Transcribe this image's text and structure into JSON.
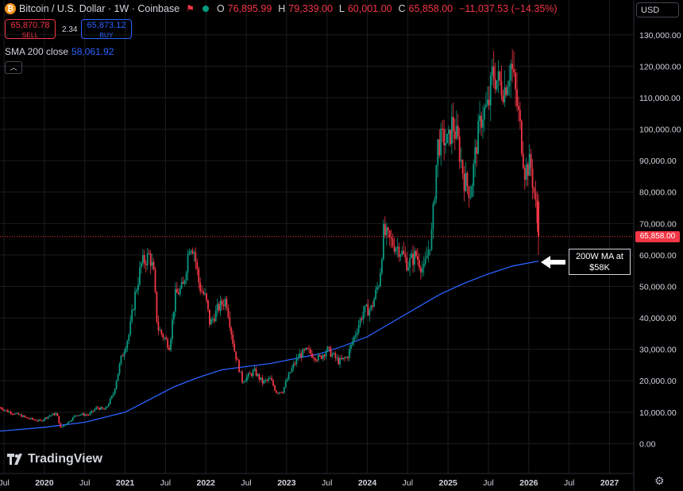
{
  "header": {
    "title": "Bitcoin / U.S. Dollar · 1W · Coinbase",
    "open_label": "O",
    "open": "76,895.99",
    "high_label": "H",
    "high": "79,339.00",
    "low_label": "L",
    "low": "60,001.00",
    "close_label": "C",
    "close": "65,858.00",
    "change": "−11,037.53 (−14.35%)"
  },
  "trade": {
    "sell_price": "65,870.78",
    "sell_label": "SELL",
    "spread": "2.34",
    "buy_price": "65,873.12",
    "buy_label": "BUY"
  },
  "indicator": {
    "label": "SMA 200 close",
    "value": "58,061.92"
  },
  "currency": "USD",
  "brand": "TradingView",
  "price_tag": "65,858.00",
  "annotation": {
    "line1": "200W MA at",
    "line2": "$58K"
  },
  "colors": {
    "up": "#089981",
    "down": "#f23645",
    "sma": "#2962ff",
    "background": "#000000"
  },
  "icons": [
    "bitcoin-icon",
    "flag-icon",
    "market-open-dot-icon",
    "collapse-icon",
    "tradingview-logo-icon",
    "settings-gear-icon",
    "arrow-left-icon"
  ],
  "chart_data": {
    "type": "candlestick",
    "title": "Bitcoin / U.S. Dollar · 1W · Coinbase",
    "y_tick_labels": [
      "130,000.00",
      "120,000.00",
      "110,000.00",
      "100,000.00",
      "90,000.00",
      "80,000.00",
      "70,000.00",
      "60,000.00",
      "50,000.00",
      "40,000.00",
      "30,000.00",
      "20,000.00",
      "10,000.00",
      "0.00"
    ],
    "y_ticks": [
      130000,
      120000,
      110000,
      100000,
      90000,
      80000,
      70000,
      60000,
      50000,
      40000,
      30000,
      20000,
      10000,
      0
    ],
    "ylim": [
      -9500,
      134000
    ],
    "x_tick_labels": [
      "Jul",
      "2020",
      "Jul",
      "2021",
      "Jul",
      "2022",
      "Jul",
      "2023",
      "Jul",
      "2024",
      "Jul",
      "2025",
      "Jul",
      "2026",
      "Jul",
      "2027"
    ],
    "x_ticks": [
      2019.5,
      2020.0,
      2020.5,
      2021.0,
      2021.5,
      2022.0,
      2022.5,
      2023.0,
      2023.5,
      2024.0,
      2024.5,
      2025.0,
      2025.5,
      2026.0,
      2026.5,
      2027.0
    ],
    "xlim": [
      2019.45,
      2027.3
    ],
    "grid": true,
    "last_price": 65858,
    "price_series": [
      [
        2019.45,
        11500
      ],
      [
        2019.55,
        10200
      ],
      [
        2019.7,
        9000
      ],
      [
        2019.8,
        8000
      ],
      [
        2019.95,
        7200
      ],
      [
        2020.05,
        8800
      ],
      [
        2020.15,
        9600
      ],
      [
        2020.2,
        5000
      ],
      [
        2020.3,
        7000
      ],
      [
        2020.4,
        9300
      ],
      [
        2020.55,
        9200
      ],
      [
        2020.65,
        11500
      ],
      [
        2020.75,
        10700
      ],
      [
        2020.85,
        15500
      ],
      [
        2020.95,
        27000
      ],
      [
        2021.05,
        35000
      ],
      [
        2021.12,
        47000
      ],
      [
        2021.2,
        57000
      ],
      [
        2021.3,
        60000
      ],
      [
        2021.35,
        55000
      ],
      [
        2021.4,
        37000
      ],
      [
        2021.5,
        33000
      ],
      [
        2021.55,
        31000
      ],
      [
        2021.62,
        47000
      ],
      [
        2021.72,
        50000
      ],
      [
        2021.8,
        64000
      ],
      [
        2021.85,
        62000
      ],
      [
        2021.92,
        50000
      ],
      [
        2022.0,
        46000
      ],
      [
        2022.05,
        38000
      ],
      [
        2022.15,
        43000
      ],
      [
        2022.25,
        46000
      ],
      [
        2022.35,
        30000
      ],
      [
        2022.45,
        20000
      ],
      [
        2022.6,
        23000
      ],
      [
        2022.7,
        19500
      ],
      [
        2022.8,
        20500
      ],
      [
        2022.87,
        16500
      ],
      [
        2022.95,
        16800
      ],
      [
        2023.05,
        23000
      ],
      [
        2023.15,
        28000
      ],
      [
        2023.25,
        29500
      ],
      [
        2023.4,
        27000
      ],
      [
        2023.5,
        30000
      ],
      [
        2023.65,
        26000
      ],
      [
        2023.75,
        27500
      ],
      [
        2023.85,
        35000
      ],
      [
        2023.95,
        42000
      ],
      [
        2024.05,
        43000
      ],
      [
        2024.15,
        52000
      ],
      [
        2024.2,
        67000
      ],
      [
        2024.3,
        64000
      ],
      [
        2024.4,
        62000
      ],
      [
        2024.5,
        57000
      ],
      [
        2024.6,
        60000
      ],
      [
        2024.7,
        55000
      ],
      [
        2024.8,
        67000
      ],
      [
        2024.87,
        95000
      ],
      [
        2024.95,
        97000
      ],
      [
        2025.0,
        95000
      ],
      [
        2025.05,
        102000
      ],
      [
        2025.12,
        96000
      ],
      [
        2025.2,
        84000
      ],
      [
        2025.28,
        80000
      ],
      [
        2025.35,
        95000
      ],
      [
        2025.42,
        105000
      ],
      [
        2025.5,
        107000
      ],
      [
        2025.55,
        118000
      ],
      [
        2025.62,
        115000
      ],
      [
        2025.7,
        113000
      ],
      [
        2025.78,
        121000
      ],
      [
        2025.83,
        112000
      ],
      [
        2025.88,
        103000
      ],
      [
        2025.95,
        87000
      ],
      [
        2026.02,
        89000
      ],
      [
        2026.08,
        76900
      ],
      [
        2026.12,
        65858
      ]
    ],
    "sma_series": [
      [
        2019.45,
        4000
      ],
      [
        2020.0,
        5200
      ],
      [
        2020.5,
        6800
      ],
      [
        2021.0,
        10000
      ],
      [
        2021.3,
        14000
      ],
      [
        2021.6,
        18000
      ],
      [
        2021.9,
        21000
      ],
      [
        2022.2,
        23500
      ],
      [
        2022.5,
        24500
      ],
      [
        2022.8,
        25500
      ],
      [
        2023.1,
        27000
      ],
      [
        2023.4,
        28500
      ],
      [
        2023.7,
        31000
      ],
      [
        2024.0,
        34000
      ],
      [
        2024.3,
        38500
      ],
      [
        2024.6,
        43000
      ],
      [
        2024.9,
        47500
      ],
      [
        2025.2,
        51000
      ],
      [
        2025.5,
        54000
      ],
      [
        2025.8,
        56500
      ],
      [
        2026.12,
        58062
      ]
    ]
  }
}
